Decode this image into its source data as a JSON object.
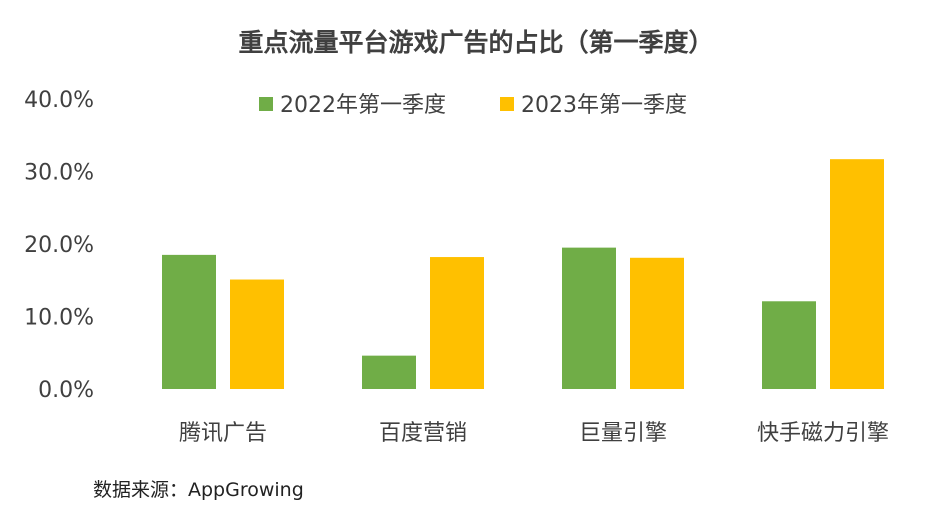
{
  "chart_data": {
    "type": "bar",
    "title": "重点流量平台游戏广告的占比（第一季度）",
    "categories": [
      "腾讯广告",
      "百度营销",
      "巨量引擎",
      "快手磁力引擎"
    ],
    "series": [
      {
        "name": "2022年第一季度",
        "color": "#70AD47",
        "values": [
          18.5,
          4.6,
          19.5,
          12.1
        ]
      },
      {
        "name": "2023年第一季度",
        "color": "#FFC000",
        "values": [
          15.1,
          18.2,
          18.1,
          31.7
        ]
      }
    ],
    "y_ticks": [
      "0.0%",
      "10.0%",
      "20.0%",
      "30.0%",
      "40.0%"
    ],
    "ylim": [
      0,
      40
    ],
    "grid": false,
    "legend_position": "top",
    "source": "数据来源：AppGrowing"
  }
}
